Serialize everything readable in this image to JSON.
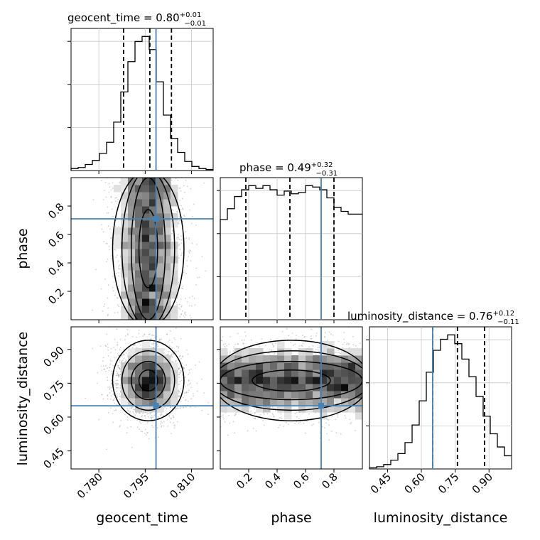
{
  "chart_data": {
    "type": "corner",
    "colors": {
      "truth": "#4682b4",
      "hist": "#000000",
      "grid": "#c8c8c8",
      "points": "#9a9a9a"
    },
    "grid": true,
    "parameters": [
      {
        "name": "geocent_time",
        "label": "geocent_time",
        "range": [
          0.771,
          0.817
        ],
        "ticks": [
          0.78,
          0.795,
          0.81
        ],
        "tick_labels": [
          "0.780",
          "0.795",
          "0.810"
        ],
        "title": "geocent_time = 0.80",
        "title_sup": "+0.01",
        "title_sub": "−0.01",
        "quantiles": [
          0.788,
          0.7965,
          0.8035
        ],
        "truth": 0.7985
      },
      {
        "name": "phase",
        "label": "phase",
        "range": [
          0.0,
          1.0
        ],
        "ticks": [
          0.2,
          0.4,
          0.6,
          0.8
        ],
        "tick_labels": [
          "0.2",
          "0.4",
          "0.6",
          "0.8"
        ],
        "title": "phase = 0.49",
        "title_sup": "+0.32",
        "title_sub": "−0.31",
        "quantiles": [
          0.18,
          0.49,
          0.8
        ],
        "truth": 0.71
      },
      {
        "name": "luminosity_distance",
        "label": "luminosity_distance",
        "range": [
          0.37,
          1.0
        ],
        "ticks": [
          0.45,
          0.6,
          0.75,
          0.9
        ],
        "tick_labels": [
          "0.45",
          "0.60",
          "0.75",
          "0.90"
        ],
        "title": "luminosity_distance = 0.76",
        "title_sup": "+0.12",
        "title_sub": "−0.11",
        "quantiles": [
          0.65,
          0.76,
          0.88
        ],
        "truth": 0.65
      }
    ],
    "histograms": {
      "geocent_time": {
        "bins": 20,
        "counts": [
          2,
          3,
          6,
          10,
          17,
          28,
          48,
          78,
          108,
          128,
          133,
          120,
          88,
          55,
          32,
          18,
          9,
          4,
          2,
          1
        ]
      },
      "phase": {
        "bins": 20,
        "counts": [
          74,
          82,
          91,
          96,
          99,
          97,
          99,
          96,
          92,
          95,
          93,
          94,
          99,
          98,
          96,
          90,
          83,
          80,
          78,
          78
        ]
      },
      "luminosity_distance": {
        "bins": 20,
        "counts": [
          1,
          2,
          4,
          8,
          14,
          24,
          40,
          62,
          88,
          108,
          118,
          122,
          114,
          100,
          84,
          66,
          48,
          32,
          20,
          12
        ]
      }
    },
    "correlations": {
      "phase_vs_geocent_time": 0.0,
      "luminosity_distance_vs_geocent_time": 0.0,
      "luminosity_distance_vs_phase": 0.0
    }
  }
}
